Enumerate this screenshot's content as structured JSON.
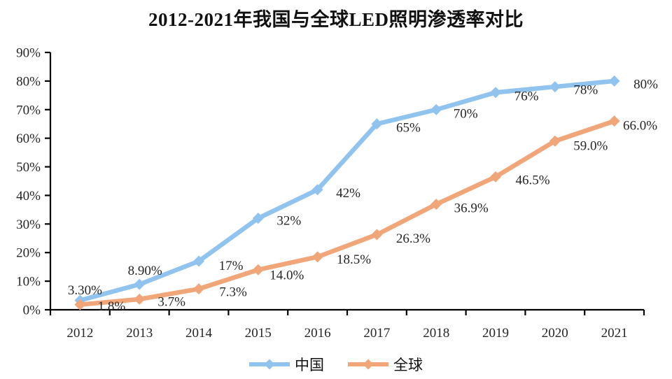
{
  "chart_data": {
    "type": "line",
    "title": "2012-2021年我国与全球LED照明渗透率对比",
    "categories": [
      "2012",
      "2013",
      "2014",
      "2015",
      "2016",
      "2017",
      "2018",
      "2019",
      "2020",
      "2021"
    ],
    "series": [
      {
        "name": "中国",
        "color": "#90C3EE",
        "values": [
          3.3,
          8.9,
          17,
          32,
          42,
          65,
          70,
          76,
          78,
          80
        ],
        "point_labels": [
          "3.30%",
          "8.90%",
          "17%",
          "32%",
          "42%",
          "65%",
          "70%",
          "76%",
          "78%",
          "80%"
        ],
        "label_dx": [
          7,
          8,
          46,
          44,
          44,
          45,
          42,
          44,
          44,
          45
        ],
        "label_dy": [
          -15,
          -20,
          6,
          3,
          4,
          5,
          5,
          5,
          4,
          4
        ]
      },
      {
        "name": "全球",
        "color": "#F0A678",
        "values": [
          1.8,
          3.7,
          7.3,
          14.0,
          18.5,
          26.3,
          36.9,
          46.5,
          59.0,
          66.0
        ],
        "point_labels": [
          "1.8%",
          "3.7%",
          "7.3%",
          "14.0%",
          "18.5%",
          "26.3%",
          "36.9%",
          "46.5%",
          "59.0%",
          "66.0%"
        ],
        "label_dx": [
          45,
          46,
          49,
          41,
          52,
          52,
          50,
          53,
          51,
          37
        ],
        "label_dy": [
          2,
          3,
          4,
          7,
          3,
          5,
          5,
          4,
          6,
          6
        ]
      }
    ],
    "y_axis": {
      "min": 0,
      "max": 90,
      "step": 10,
      "tick_labels": [
        "0%",
        "10%",
        "20%",
        "30%",
        "40%",
        "50%",
        "60%",
        "70%",
        "80%",
        "90%"
      ]
    },
    "x_axis": {
      "tick_labels": [
        "2012",
        "2013",
        "2014",
        "2015",
        "2016",
        "2017",
        "2018",
        "2019",
        "2020",
        "2021"
      ]
    },
    "legend": {
      "position": "bottom",
      "entries": [
        "中国",
        "全球"
      ]
    },
    "grid": false,
    "marker": "diamond",
    "axis_color": "#000000",
    "text_color": "#262626"
  }
}
